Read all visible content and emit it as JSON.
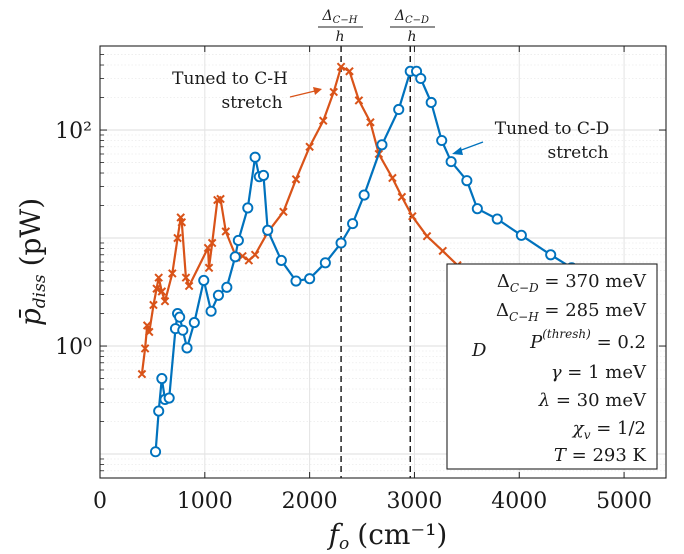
{
  "chart_data": {
    "type": "line",
    "title": "",
    "xlabel_main": "f",
    "xlabel_sub": "o",
    "xlabel_unit": "(cm⁻¹)",
    "ylabel_main": "p̄",
    "ylabel_sub": "diss",
    "ylabel_unit": "(pW)",
    "x_scale": "linear",
    "y_scale": "log",
    "xlim": [
      0,
      5400
    ],
    "ylim": [
      0.06,
      600
    ],
    "x_ticks": [
      0,
      1000,
      2000,
      3000,
      4000,
      5000
    ],
    "x_tick_labels": [
      "0",
      "1000",
      "2000",
      "3000",
      "4000",
      "5000"
    ],
    "y_ticks": [
      1,
      100
    ],
    "y_tick_labels": [
      "10⁰",
      "10²"
    ],
    "grid": true,
    "series": [
      {
        "color": "#d95319",
        "marker": "x",
        "x": [
          400,
          430,
          450,
          470,
          510,
          540,
          560,
          590,
          620,
          690,
          740,
          770,
          780,
          820,
          850,
          1030,
          1040,
          1070,
          1120,
          1150,
          1200,
          1300,
          1360,
          1420,
          1480,
          1600,
          1750,
          1870,
          2000,
          2130,
          2230,
          2300,
          2380,
          2470,
          2580,
          2660,
          2790,
          2880,
          2980,
          3120,
          3270,
          3410
        ],
        "y": [
          0.55,
          0.95,
          1.55,
          1.35,
          2.4,
          3.4,
          4.3,
          3.2,
          2.6,
          4.7,
          10.0,
          15.5,
          14.0,
          4.3,
          3.6,
          8.1,
          5.3,
          9.0,
          22.5,
          23.0,
          11.5,
          6.6,
          6.8,
          6.2,
          7.0,
          11.3,
          17.5,
          35.0,
          70.0,
          122.0,
          225.0,
          385.0,
          350.0,
          188.0,
          118.0,
          60.0,
          36.0,
          24.0,
          15.9,
          10.4,
          7.6,
          5.6
        ]
      },
      {
        "color": "#0072bd",
        "marker": "o",
        "x": [
          530,
          560,
          590,
          620,
          660,
          720,
          740,
          760,
          790,
          830,
          900,
          990,
          1060,
          1130,
          1210,
          1290,
          1320,
          1410,
          1480,
          1520,
          1560,
          1600,
          1730,
          1870,
          2000,
          2150,
          2300,
          2410,
          2520,
          2690,
          2850,
          2960,
          3020,
          3060,
          3160,
          3260,
          3350,
          3500,
          3600,
          3790,
          4020,
          4300,
          4500,
          4680
        ],
        "y": [
          0.105,
          0.25,
          0.5,
          0.32,
          0.33,
          1.45,
          2.0,
          1.85,
          1.4,
          0.96,
          1.65,
          4.05,
          2.1,
          2.95,
          3.5,
          6.7,
          9.5,
          19.0,
          56.0,
          37.0,
          38.0,
          11.8,
          6.2,
          4.0,
          4.2,
          5.9,
          9.0,
          13.6,
          25.0,
          73.0,
          155.0,
          350.0,
          350.0,
          300.0,
          180.0,
          80.0,
          51.0,
          34.0,
          18.7,
          15.0,
          10.6,
          7.0,
          5.3,
          3.8
        ]
      }
    ],
    "reference_lines": [
      {
        "x": 2300,
        "label": "Δ_{C-H}/h"
      },
      {
        "x": 2960,
        "label": "Δ_{C-D}/h"
      }
    ],
    "annotations": [
      {
        "text_line1": "Tuned to C-H",
        "text_line2": "stretch",
        "color": "#d95319"
      },
      {
        "text_line1": "Tuned to C-D",
        "text_line2": "stretch",
        "color": "#0072bd"
      }
    ],
    "parameters": [
      "Δ_{C-D} = 370 meV",
      "Δ_{C-H} = 285 meV",
      "P_D^{(thresh)} = 0.2",
      "γ = 1 meV",
      "λ = 30 meV",
      "χ_v = 1/2",
      "T = 293 K"
    ]
  }
}
